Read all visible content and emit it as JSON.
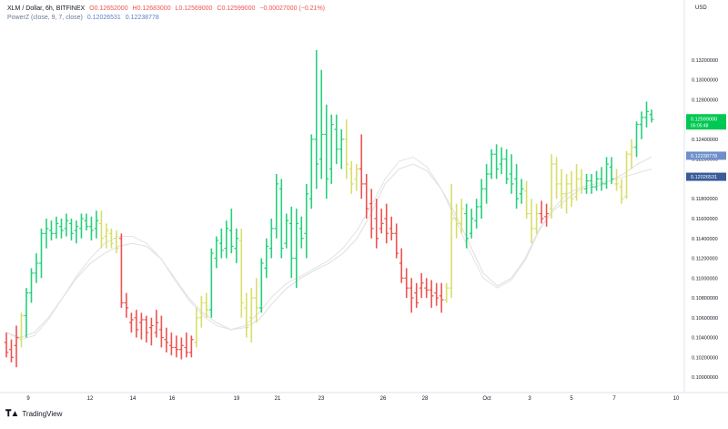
{
  "legend": {
    "symbol": "XLM / Dollar, 6h, BITFINEX",
    "open": "O0.12652000",
    "high": "H0.12683000",
    "low": "L0.12569000",
    "close": "C0.12599000",
    "change": "−0.00027000 (−0.21%)",
    "indicator": "PowerZ (close, 9, 7, close)",
    "ind_value_1": "0.12026531",
    "ind_value_2": "0.12238778"
  },
  "currency": "USD",
  "branding": {
    "name": "TradingView"
  },
  "colors": {
    "up": "#26d07c",
    "down": "#ef5350",
    "neutral": "#d7df6a",
    "line": "#e3e3e3",
    "last_price_bg": "#00c853",
    "ind_badge_1": "#3a5a9a",
    "ind_badge_2": "#6f8fc9"
  },
  "chart_data": {
    "type": "ohlc",
    "title": "XLM / Dollar, 6h, BITFINEX",
    "ylim": [
      0.099,
      0.1375
    ],
    "y_ticks": [
      "0.10000000",
      "0.10200000",
      "0.10400000",
      "0.10600000",
      "0.10800000",
      "0.11000000",
      "0.11200000",
      "0.11400000",
      "0.11600000",
      "0.11800000",
      "0.12000000",
      "0.12200000",
      "0.12400000",
      "0.12600000",
      "0.12800000",
      "0.13000000",
      "0.13200000"
    ],
    "x_tick_labels": [
      "9",
      "12",
      "14",
      "16",
      "19",
      "21",
      "23",
      "26",
      "28",
      "Oct",
      "3",
      "5",
      "7",
      "10"
    ],
    "last_price": {
      "value": 0.12599,
      "label": "0.12599000",
      "countdown": "05:05:48"
    },
    "indicator_badges": [
      {
        "value": 0.12238778,
        "label": "0.12238778"
      },
      {
        "value": 0.12026531,
        "label": "0.12026531"
      }
    ],
    "bars": [
      {
        "o": 0.1035,
        "h": 0.1045,
        "l": 0.102,
        "c": 0.1025,
        "k": "down"
      },
      {
        "o": 0.1028,
        "h": 0.1038,
        "l": 0.1015,
        "c": 0.102,
        "k": "down"
      },
      {
        "o": 0.1032,
        "h": 0.1052,
        "l": 0.101,
        "c": 0.104,
        "k": "down"
      },
      {
        "o": 0.104,
        "h": 0.1065,
        "l": 0.103,
        "c": 0.1062,
        "k": "neutral"
      },
      {
        "o": 0.1062,
        "h": 0.109,
        "l": 0.104,
        "c": 0.1085,
        "k": "up"
      },
      {
        "o": 0.1085,
        "h": 0.111,
        "l": 0.1075,
        "c": 0.1105,
        "k": "up"
      },
      {
        "o": 0.1105,
        "h": 0.1125,
        "l": 0.1095,
        "c": 0.1115,
        "k": "up"
      },
      {
        "o": 0.1115,
        "h": 0.115,
        "l": 0.11,
        "c": 0.1145,
        "k": "up"
      },
      {
        "o": 0.1145,
        "h": 0.116,
        "l": 0.113,
        "c": 0.115,
        "k": "up"
      },
      {
        "o": 0.1148,
        "h": 0.1158,
        "l": 0.1138,
        "c": 0.1145,
        "k": "up"
      },
      {
        "o": 0.1145,
        "h": 0.1162,
        "l": 0.114,
        "c": 0.1155,
        "k": "up"
      },
      {
        "o": 0.1152,
        "h": 0.116,
        "l": 0.114,
        "c": 0.1148,
        "k": "up"
      },
      {
        "o": 0.115,
        "h": 0.1165,
        "l": 0.1142,
        "c": 0.1158,
        "k": "up"
      },
      {
        "o": 0.1155,
        "h": 0.116,
        "l": 0.1138,
        "c": 0.1145,
        "k": "up"
      },
      {
        "o": 0.1148,
        "h": 0.1158,
        "l": 0.1135,
        "c": 0.1152,
        "k": "up"
      },
      {
        "o": 0.115,
        "h": 0.1165,
        "l": 0.114,
        "c": 0.116,
        "k": "up"
      },
      {
        "o": 0.1158,
        "h": 0.1165,
        "l": 0.1148,
        "c": 0.1152,
        "k": "up"
      },
      {
        "o": 0.1152,
        "h": 0.1162,
        "l": 0.1138,
        "c": 0.1148,
        "k": "up"
      },
      {
        "o": 0.115,
        "h": 0.1168,
        "l": 0.114,
        "c": 0.1158,
        "k": "up"
      },
      {
        "o": 0.1155,
        "h": 0.1168,
        "l": 0.113,
        "c": 0.114,
        "k": "neutral"
      },
      {
        "o": 0.1142,
        "h": 0.1155,
        "l": 0.113,
        "c": 0.1148,
        "k": "neutral"
      },
      {
        "o": 0.1145,
        "h": 0.115,
        "l": 0.113,
        "c": 0.1135,
        "k": "neutral"
      },
      {
        "o": 0.114,
        "h": 0.1148,
        "l": 0.1125,
        "c": 0.113,
        "k": "neutral"
      },
      {
        "o": 0.114,
        "h": 0.1145,
        "l": 0.107,
        "c": 0.1075,
        "k": "down"
      },
      {
        "o": 0.1075,
        "h": 0.1085,
        "l": 0.106,
        "c": 0.107,
        "k": "down"
      },
      {
        "o": 0.1055,
        "h": 0.1065,
        "l": 0.1045,
        "c": 0.1058,
        "k": "down"
      },
      {
        "o": 0.106,
        "h": 0.1068,
        "l": 0.104,
        "c": 0.1048,
        "k": "down"
      },
      {
        "o": 0.1055,
        "h": 0.1065,
        "l": 0.1038,
        "c": 0.1058,
        "k": "down"
      },
      {
        "o": 0.1058,
        "h": 0.1062,
        "l": 0.1035,
        "c": 0.1045,
        "k": "down"
      },
      {
        "o": 0.105,
        "h": 0.106,
        "l": 0.1032,
        "c": 0.1052,
        "k": "down"
      },
      {
        "o": 0.1045,
        "h": 0.1068,
        "l": 0.104,
        "c": 0.1055,
        "k": "down"
      },
      {
        "o": 0.1048,
        "h": 0.1062,
        "l": 0.103,
        "c": 0.104,
        "k": "down"
      },
      {
        "o": 0.1038,
        "h": 0.105,
        "l": 0.1025,
        "c": 0.1035,
        "k": "down"
      },
      {
        "o": 0.1032,
        "h": 0.1045,
        "l": 0.1022,
        "c": 0.103,
        "k": "down"
      },
      {
        "o": 0.103,
        "h": 0.1042,
        "l": 0.102,
        "c": 0.1028,
        "k": "down"
      },
      {
        "o": 0.1028,
        "h": 0.104,
        "l": 0.1018,
        "c": 0.1032,
        "k": "down"
      },
      {
        "o": 0.103,
        "h": 0.1045,
        "l": 0.102,
        "c": 0.1025,
        "k": "down"
      },
      {
        "o": 0.1025,
        "h": 0.1042,
        "l": 0.102,
        "c": 0.1038,
        "k": "down"
      },
      {
        "o": 0.1035,
        "h": 0.107,
        "l": 0.103,
        "c": 0.106,
        "k": "neutral"
      },
      {
        "o": 0.106,
        "h": 0.1082,
        "l": 0.105,
        "c": 0.1075,
        "k": "neutral"
      },
      {
        "o": 0.1075,
        "h": 0.1085,
        "l": 0.106,
        "c": 0.1068,
        "k": "neutral"
      },
      {
        "o": 0.1068,
        "h": 0.113,
        "l": 0.106,
        "c": 0.1125,
        "k": "up"
      },
      {
        "o": 0.112,
        "h": 0.1142,
        "l": 0.111,
        "c": 0.1138,
        "k": "up"
      },
      {
        "o": 0.1135,
        "h": 0.115,
        "l": 0.112,
        "c": 0.1128,
        "k": "up"
      },
      {
        "o": 0.113,
        "h": 0.1158,
        "l": 0.112,
        "c": 0.115,
        "k": "up"
      },
      {
        "o": 0.1148,
        "h": 0.117,
        "l": 0.1125,
        "c": 0.1132,
        "k": "up"
      },
      {
        "o": 0.113,
        "h": 0.115,
        "l": 0.1115,
        "c": 0.114,
        "k": "up"
      },
      {
        "o": 0.1138,
        "h": 0.115,
        "l": 0.106,
        "c": 0.1075,
        "k": "neutral"
      },
      {
        "o": 0.107,
        "h": 0.1085,
        "l": 0.104,
        "c": 0.105,
        "k": "neutral"
      },
      {
        "o": 0.106,
        "h": 0.109,
        "l": 0.1035,
        "c": 0.108,
        "k": "neutral"
      },
      {
        "o": 0.108,
        "h": 0.11,
        "l": 0.1055,
        "c": 0.107,
        "k": "neutral"
      },
      {
        "o": 0.107,
        "h": 0.112,
        "l": 0.1065,
        "c": 0.1115,
        "k": "up"
      },
      {
        "o": 0.111,
        "h": 0.114,
        "l": 0.11,
        "c": 0.1132,
        "k": "up"
      },
      {
        "o": 0.113,
        "h": 0.116,
        "l": 0.112,
        "c": 0.115,
        "k": "up"
      },
      {
        "o": 0.115,
        "h": 0.1205,
        "l": 0.114,
        "c": 0.1195,
        "k": "up"
      },
      {
        "o": 0.119,
        "h": 0.12,
        "l": 0.112,
        "c": 0.113,
        "k": "up"
      },
      {
        "o": 0.1135,
        "h": 0.1165,
        "l": 0.113,
        "c": 0.1158,
        "k": "up"
      },
      {
        "o": 0.1155,
        "h": 0.1172,
        "l": 0.11,
        "c": 0.112,
        "k": "up"
      },
      {
        "o": 0.112,
        "h": 0.117,
        "l": 0.109,
        "c": 0.1155,
        "k": "up"
      },
      {
        "o": 0.115,
        "h": 0.1162,
        "l": 0.113,
        "c": 0.114,
        "k": "up"
      },
      {
        "o": 0.1145,
        "h": 0.1195,
        "l": 0.112,
        "c": 0.1185,
        "k": "up"
      },
      {
        "o": 0.118,
        "h": 0.1245,
        "l": 0.117,
        "c": 0.124,
        "k": "up"
      },
      {
        "o": 0.124,
        "h": 0.133,
        "l": 0.119,
        "c": 0.1215,
        "k": "up"
      },
      {
        "o": 0.122,
        "h": 0.131,
        "l": 0.12,
        "c": 0.1245,
        "k": "up"
      },
      {
        "o": 0.1245,
        "h": 0.1275,
        "l": 0.118,
        "c": 0.12,
        "k": "up"
      },
      {
        "o": 0.121,
        "h": 0.1265,
        "l": 0.1195,
        "c": 0.1255,
        "k": "up"
      },
      {
        "o": 0.125,
        "h": 0.1265,
        "l": 0.1215,
        "c": 0.123,
        "k": "up"
      },
      {
        "o": 0.123,
        "h": 0.125,
        "l": 0.121,
        "c": 0.124,
        "k": "up"
      },
      {
        "o": 0.124,
        "h": 0.126,
        "l": 0.12,
        "c": 0.1215,
        "k": "neutral"
      },
      {
        "o": 0.121,
        "h": 0.1218,
        "l": 0.1185,
        "c": 0.1195,
        "k": "neutral"
      },
      {
        "o": 0.12,
        "h": 0.1215,
        "l": 0.1188,
        "c": 0.121,
        "k": "neutral"
      },
      {
        "o": 0.121,
        "h": 0.1245,
        "l": 0.118,
        "c": 0.1195,
        "k": "down"
      },
      {
        "o": 0.1195,
        "h": 0.1205,
        "l": 0.116,
        "c": 0.117,
        "k": "down"
      },
      {
        "o": 0.1175,
        "h": 0.119,
        "l": 0.114,
        "c": 0.115,
        "k": "down"
      },
      {
        "o": 0.116,
        "h": 0.118,
        "l": 0.113,
        "c": 0.114,
        "k": "down"
      },
      {
        "o": 0.115,
        "h": 0.117,
        "l": 0.1145,
        "c": 0.1155,
        "k": "down"
      },
      {
        "o": 0.116,
        "h": 0.1175,
        "l": 0.1135,
        "c": 0.1145,
        "k": "down"
      },
      {
        "o": 0.115,
        "h": 0.1162,
        "l": 0.1138,
        "c": 0.1145,
        "k": "down"
      },
      {
        "o": 0.1145,
        "h": 0.1155,
        "l": 0.112,
        "c": 0.1125,
        "k": "down"
      },
      {
        "o": 0.1115,
        "h": 0.113,
        "l": 0.1095,
        "c": 0.11,
        "k": "down"
      },
      {
        "o": 0.11,
        "h": 0.111,
        "l": 0.108,
        "c": 0.109,
        "k": "down"
      },
      {
        "o": 0.109,
        "h": 0.11,
        "l": 0.1065,
        "c": 0.108,
        "k": "down"
      },
      {
        "o": 0.1085,
        "h": 0.1095,
        "l": 0.107,
        "c": 0.1075,
        "k": "down"
      },
      {
        "o": 0.109,
        "h": 0.1105,
        "l": 0.108,
        "c": 0.1095,
        "k": "down"
      },
      {
        "o": 0.109,
        "h": 0.11,
        "l": 0.108,
        "c": 0.1088,
        "k": "down"
      },
      {
        "o": 0.1088,
        "h": 0.1098,
        "l": 0.107,
        "c": 0.1082,
        "k": "down"
      },
      {
        "o": 0.1085,
        "h": 0.1095,
        "l": 0.1072,
        "c": 0.108,
        "k": "down"
      },
      {
        "o": 0.1082,
        "h": 0.1095,
        "l": 0.1065,
        "c": 0.1078,
        "k": "down"
      },
      {
        "o": 0.1078,
        "h": 0.1095,
        "l": 0.1075,
        "c": 0.109,
        "k": "neutral"
      },
      {
        "o": 0.109,
        "h": 0.1195,
        "l": 0.108,
        "c": 0.116,
        "k": "neutral"
      },
      {
        "o": 0.116,
        "h": 0.1175,
        "l": 0.114,
        "c": 0.1155,
        "k": "neutral"
      },
      {
        "o": 0.1155,
        "h": 0.118,
        "l": 0.1145,
        "c": 0.117,
        "k": "neutral"
      },
      {
        "o": 0.1165,
        "h": 0.1175,
        "l": 0.113,
        "c": 0.114,
        "k": "up"
      },
      {
        "o": 0.1145,
        "h": 0.117,
        "l": 0.114,
        "c": 0.116,
        "k": "up"
      },
      {
        "o": 0.1158,
        "h": 0.118,
        "l": 0.115,
        "c": 0.1172,
        "k": "up"
      },
      {
        "o": 0.1172,
        "h": 0.12,
        "l": 0.116,
        "c": 0.119,
        "k": "up"
      },
      {
        "o": 0.119,
        "h": 0.1215,
        "l": 0.1175,
        "c": 0.1205,
        "k": "up"
      },
      {
        "o": 0.1205,
        "h": 0.123,
        "l": 0.12,
        "c": 0.1225,
        "k": "up"
      },
      {
        "o": 0.1225,
        "h": 0.1235,
        "l": 0.12,
        "c": 0.121,
        "k": "up"
      },
      {
        "o": 0.1215,
        "h": 0.1232,
        "l": 0.1205,
        "c": 0.122,
        "k": "up"
      },
      {
        "o": 0.122,
        "h": 0.123,
        "l": 0.1195,
        "c": 0.12,
        "k": "up"
      },
      {
        "o": 0.1205,
        "h": 0.1225,
        "l": 0.1185,
        "c": 0.1195,
        "k": "up"
      },
      {
        "o": 0.12,
        "h": 0.1215,
        "l": 0.117,
        "c": 0.118,
        "k": "up"
      },
      {
        "o": 0.1185,
        "h": 0.12,
        "l": 0.1175,
        "c": 0.119,
        "k": "up"
      },
      {
        "o": 0.1188,
        "h": 0.1198,
        "l": 0.116,
        "c": 0.1165,
        "k": "neutral"
      },
      {
        "o": 0.1165,
        "h": 0.118,
        "l": 0.1135,
        "c": 0.115,
        "k": "neutral"
      },
      {
        "o": 0.115,
        "h": 0.1175,
        "l": 0.1145,
        "c": 0.1165,
        "k": "neutral"
      },
      {
        "o": 0.1165,
        "h": 0.1178,
        "l": 0.1155,
        "c": 0.116,
        "k": "down"
      },
      {
        "o": 0.1162,
        "h": 0.1175,
        "l": 0.1152,
        "c": 0.1165,
        "k": "down"
      },
      {
        "o": 0.117,
        "h": 0.1225,
        "l": 0.116,
        "c": 0.1215,
        "k": "neutral"
      },
      {
        "o": 0.1215,
        "h": 0.1222,
        "l": 0.118,
        "c": 0.1195,
        "k": "neutral"
      },
      {
        "o": 0.1195,
        "h": 0.121,
        "l": 0.117,
        "c": 0.1185,
        "k": "neutral"
      },
      {
        "o": 0.1185,
        "h": 0.1205,
        "l": 0.1165,
        "c": 0.1195,
        "k": "neutral"
      },
      {
        "o": 0.1195,
        "h": 0.1208,
        "l": 0.1172,
        "c": 0.118,
        "k": "neutral"
      },
      {
        "o": 0.1182,
        "h": 0.1215,
        "l": 0.1178,
        "c": 0.12,
        "k": "neutral"
      },
      {
        "o": 0.12,
        "h": 0.121,
        "l": 0.1185,
        "c": 0.119,
        "k": "neutral"
      },
      {
        "o": 0.119,
        "h": 0.1205,
        "l": 0.1185,
        "c": 0.1198,
        "k": "up"
      },
      {
        "o": 0.1198,
        "h": 0.1205,
        "l": 0.1185,
        "c": 0.1192,
        "k": "up"
      },
      {
        "o": 0.1192,
        "h": 0.1208,
        "l": 0.1188,
        "c": 0.12,
        "k": "up"
      },
      {
        "o": 0.12,
        "h": 0.1212,
        "l": 0.1188,
        "c": 0.1195,
        "k": "up"
      },
      {
        "o": 0.1195,
        "h": 0.1222,
        "l": 0.119,
        "c": 0.1215,
        "k": "up"
      },
      {
        "o": 0.1212,
        "h": 0.1222,
        "l": 0.1195,
        "c": 0.12,
        "k": "up"
      },
      {
        "o": 0.1195,
        "h": 0.121,
        "l": 0.1188,
        "c": 0.1195,
        "k": "neutral"
      },
      {
        "o": 0.1192,
        "h": 0.12,
        "l": 0.1175,
        "c": 0.118,
        "k": "neutral"
      },
      {
        "o": 0.1182,
        "h": 0.1228,
        "l": 0.118,
        "c": 0.1225,
        "k": "neutral"
      },
      {
        "o": 0.1225,
        "h": 0.124,
        "l": 0.121,
        "c": 0.1232,
        "k": "neutral"
      },
      {
        "o": 0.1232,
        "h": 0.1258,
        "l": 0.1222,
        "c": 0.1255,
        "k": "up"
      },
      {
        "o": 0.1255,
        "h": 0.1268,
        "l": 0.124,
        "c": 0.1262,
        "k": "up"
      },
      {
        "o": 0.1262,
        "h": 0.1278,
        "l": 0.1252,
        "c": 0.1268,
        "k": "up"
      },
      {
        "o": 0.1265,
        "h": 0.127,
        "l": 0.1257,
        "c": 0.126,
        "k": "up"
      }
    ],
    "ma_fast": [
      0.1045,
      0.104,
      0.1045,
      0.106,
      0.108,
      0.11,
      0.1115,
      0.1125,
      0.1132,
      0.1135,
      0.1132,
      0.112,
      0.11,
      0.108,
      0.1065,
      0.1055,
      0.1048,
      0.105,
      0.1058,
      0.1075,
      0.109,
      0.11,
      0.1108,
      0.1115,
      0.1125,
      0.114,
      0.1165,
      0.1195,
      0.121,
      0.1215,
      0.1208,
      0.119,
      0.1165,
      0.1135,
      0.1105,
      0.1092,
      0.11,
      0.112,
      0.115,
      0.1168,
      0.118,
      0.119,
      0.1192,
      0.1198,
      0.1205,
      0.1215,
      0.1222
    ],
    "ma_slow": [
      0.1045,
      0.1038,
      0.1042,
      0.1058,
      0.108,
      0.1102,
      0.112,
      0.1135,
      0.1142,
      0.1142,
      0.1135,
      0.112,
      0.1098,
      0.1078,
      0.1062,
      0.1052,
      0.1048,
      0.1052,
      0.1065,
      0.1082,
      0.1095,
      0.1102,
      0.111,
      0.1118,
      0.113,
      0.1148,
      0.1172,
      0.12,
      0.1218,
      0.1222,
      0.1212,
      0.119,
      0.116,
      0.1128,
      0.11,
      0.109,
      0.1098,
      0.1118,
      0.1148,
      0.117,
      0.1185,
      0.1192,
      0.1195,
      0.1198,
      0.1202,
      0.1206,
      0.121
    ]
  }
}
